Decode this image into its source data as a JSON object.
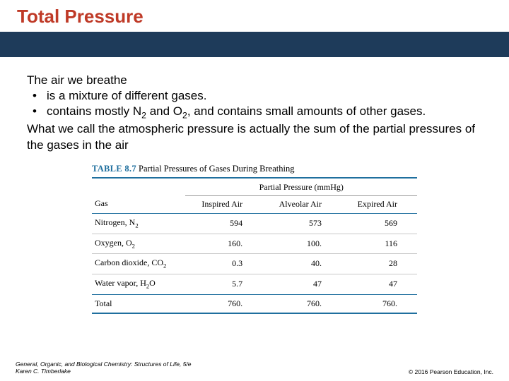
{
  "colors": {
    "title": "#bf3a27",
    "banner": "#1e3b5a",
    "table_label": "#1f6f9e",
    "rule": "#1f6f9e",
    "text": "#000000"
  },
  "title": "Total Pressure",
  "body": {
    "intro": "The air we breathe",
    "bullets": [
      "is a mixture of different gases.",
      "contains mostly N",
      " and O",
      ", and contains small amounts of other gases."
    ],
    "b2_sub1": "2",
    "b2_sub2": "2",
    "outro": "What we call the atmospheric pressure is actually the sum of the partial pressures of the gases in the air"
  },
  "table": {
    "label": "TABLE 8.7",
    "caption": "Partial Pressures of Gases During Breathing",
    "group_header": "Partial Pressure (mmHg)",
    "columns": [
      "Gas",
      "Inspired Air",
      "Alveolar Air",
      "Expired Air"
    ],
    "rows": [
      {
        "gas": "Nitrogen, N",
        "gas_sub": "2",
        "vals": [
          "594",
          "573",
          "569"
        ]
      },
      {
        "gas": "Oxygen, O",
        "gas_sub": "2",
        "vals": [
          "160.",
          "100.",
          "116"
        ]
      },
      {
        "gas": "Carbon dioxide, CO",
        "gas_sub": "2",
        "vals": [
          "0.3",
          "40.",
          "28"
        ]
      },
      {
        "gas": "Water vapor, H",
        "gas_sub": "2",
        "gas_tail": "O",
        "vals": [
          "5.7",
          "47",
          "47"
        ]
      },
      {
        "gas": "Total",
        "vals": [
          "760.",
          "760.",
          "760."
        ],
        "total": true
      }
    ]
  },
  "footer": {
    "book": "General, Organic, and Biological Chemistry: Structures of Life, 5/e",
    "author": "Karen C. Timberlake",
    "copyright": "© 2016 Pearson Education, Inc."
  }
}
